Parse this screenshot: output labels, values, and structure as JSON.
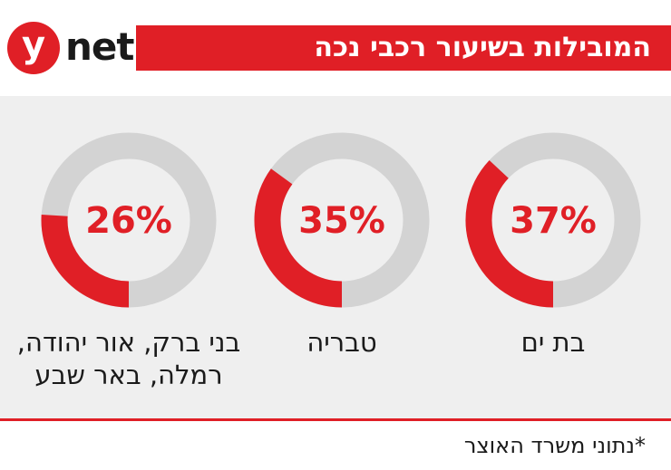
{
  "brand": {
    "logo_letter": "y",
    "logo_word": "net"
  },
  "title": "המובילות בשיעור רכבי נכה",
  "footer_note": "*נתוני משרד האוצר",
  "colors": {
    "accent": "#e01f26",
    "ring_bg": "#d3d3d3",
    "panel": "#efefef"
  },
  "chart_data": {
    "type": "pie",
    "title": "המובילות בשיעור רכבי נכה",
    "unit": "%",
    "items": [
      {
        "label": "בת ים",
        "value": 37,
        "value_label": "37%"
      },
      {
        "label": "טבריה",
        "value": 35,
        "value_label": "35%"
      },
      {
        "label": "בני ברק, אור יהודה, רמלה, באר שבע",
        "label_lines": [
          "בני ברק, אור יהודה,",
          "רמלה, באר שבע"
        ],
        "value": 26,
        "value_label": "26%"
      }
    ]
  }
}
